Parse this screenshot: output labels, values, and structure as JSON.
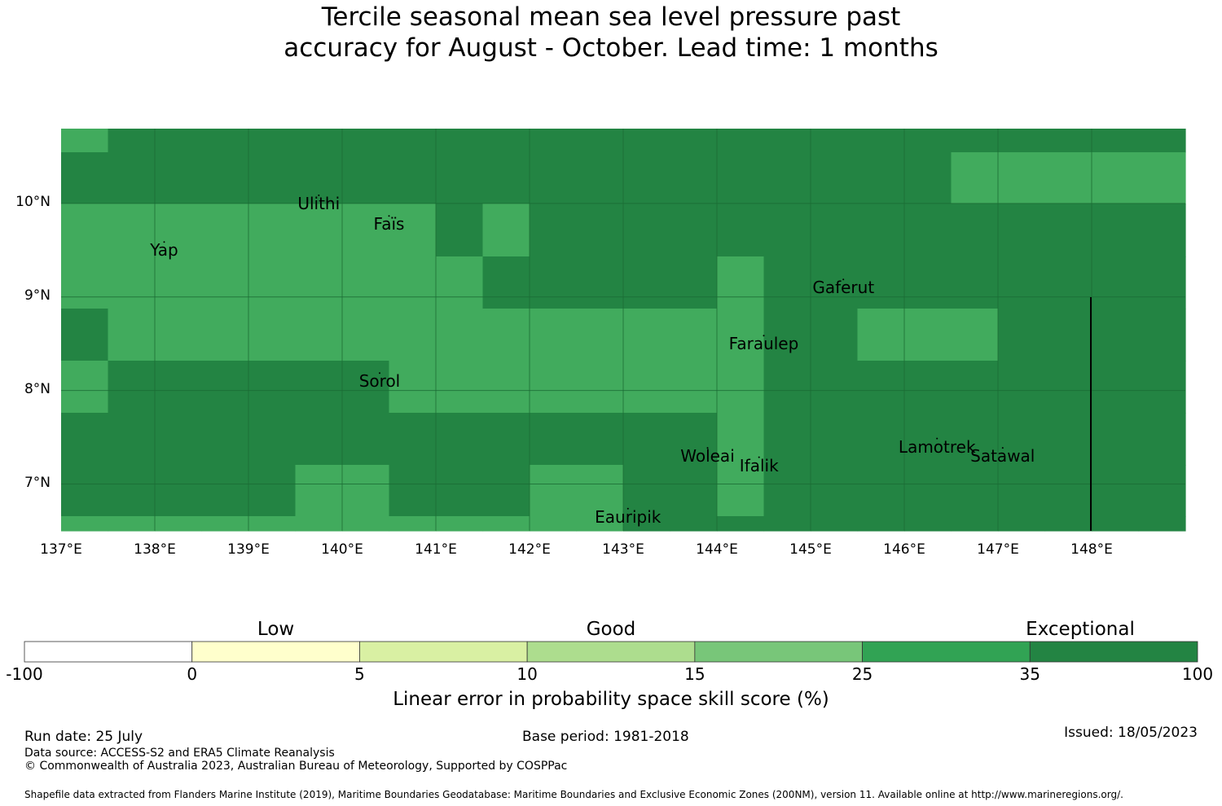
{
  "title": {
    "line1": "Tercile seasonal mean sea level pressure past",
    "line2": "accuracy for August - October. Lead time: 1 months"
  },
  "map": {
    "lon_ticks": [
      "137°E",
      "138°E",
      "139°E",
      "140°E",
      "141°E",
      "142°E",
      "143°E",
      "144°E",
      "145°E",
      "146°E",
      "147°E",
      "148°E"
    ],
    "lat_ticks": [
      "10°N",
      "9°N",
      "8°N",
      "7°N"
    ],
    "places": [
      {
        "name": "Ulithi",
        "lon": 139.75,
        "lat": 10.0
      },
      {
        "name": "Yap",
        "lon": 138.1,
        "lat": 9.5
      },
      {
        "name": "Faïs",
        "lon": 140.5,
        "lat": 9.78
      },
      {
        "name": "Gaferut",
        "lon": 145.35,
        "lat": 9.1
      },
      {
        "name": "Faraulep",
        "lon": 144.5,
        "lat": 8.5
      },
      {
        "name": "Sorol",
        "lon": 140.4,
        "lat": 8.1
      },
      {
        "name": "Woleai",
        "lon": 143.9,
        "lat": 7.3
      },
      {
        "name": "Ifalik",
        "lon": 144.45,
        "lat": 7.2
      },
      {
        "name": "Lamotrek",
        "lon": 146.35,
        "lat": 7.4
      },
      {
        "name": "Satawal",
        "lon": 147.05,
        "lat": 7.3
      },
      {
        "name": "Eauripik",
        "lon": 143.05,
        "lat": 6.65
      }
    ],
    "grid_colors": {
      "med": "#41ab5d",
      "dark": "#238443"
    },
    "grid_cells": [
      [
        "med",
        "dark",
        "dark",
        "dark",
        "dark",
        "dark",
        "dark",
        "dark",
        "dark",
        "dark",
        "dark",
        "dark",
        "dark",
        "dark",
        "dark",
        "dark",
        "dark",
        "dark",
        "dark",
        "dark",
        "dark",
        "dark",
        "dark",
        "dark"
      ],
      [
        "dark",
        "dark",
        "dark",
        "dark",
        "dark",
        "dark",
        "dark",
        "dark",
        "dark",
        "dark",
        "dark",
        "dark",
        "dark",
        "dark",
        "dark",
        "dark",
        "dark",
        "dark",
        "dark",
        "med",
        "med",
        "med",
        "med",
        "med"
      ],
      [
        "med",
        "med",
        "med",
        "med",
        "med",
        "med",
        "med",
        "med",
        "dark",
        "med",
        "dark",
        "dark",
        "dark",
        "dark",
        "dark",
        "dark",
        "dark",
        "dark",
        "dark",
        "dark",
        "dark",
        "dark",
        "dark",
        "dark"
      ],
      [
        "med",
        "med",
        "med",
        "med",
        "med",
        "med",
        "med",
        "med",
        "med",
        "dark",
        "dark",
        "dark",
        "dark",
        "dark",
        "med",
        "dark",
        "dark",
        "dark",
        "dark",
        "dark",
        "dark",
        "dark",
        "dark",
        "dark"
      ],
      [
        "dark",
        "med",
        "med",
        "med",
        "med",
        "med",
        "med",
        "med",
        "med",
        "med",
        "med",
        "med",
        "med",
        "med",
        "med",
        "dark",
        "dark",
        "med",
        "med",
        "med",
        "dark",
        "dark",
        "dark",
        "dark"
      ],
      [
        "med",
        "dark",
        "dark",
        "dark",
        "dark",
        "dark",
        "dark",
        "med",
        "med",
        "med",
        "med",
        "med",
        "med",
        "med",
        "med",
        "dark",
        "dark",
        "dark",
        "dark",
        "dark",
        "dark",
        "dark",
        "dark",
        "dark"
      ],
      [
        "dark",
        "dark",
        "dark",
        "dark",
        "dark",
        "dark",
        "dark",
        "dark",
        "dark",
        "dark",
        "dark",
        "dark",
        "dark",
        "dark",
        "med",
        "dark",
        "dark",
        "dark",
        "dark",
        "dark",
        "dark",
        "dark",
        "dark",
        "dark"
      ],
      [
        "dark",
        "dark",
        "dark",
        "dark",
        "dark",
        "med",
        "med",
        "dark",
        "dark",
        "dark",
        "med",
        "med",
        "dark",
        "dark",
        "med",
        "dark",
        "dark",
        "dark",
        "dark",
        "dark",
        "dark",
        "dark",
        "dark",
        "dark"
      ],
      [
        "med",
        "med",
        "med",
        "med",
        "med",
        "med",
        "med",
        "med",
        "med",
        "med",
        "med",
        "med",
        "dark",
        "dark",
        "dark",
        "dark",
        "dark",
        "dark",
        "dark",
        "dark",
        "dark",
        "dark",
        "dark",
        "dark"
      ]
    ]
  },
  "colorbar": {
    "categories": [
      "Low",
      "Good",
      "Exceptional"
    ],
    "ticks": [
      "-100",
      "0",
      "5",
      "10",
      "15",
      "25",
      "35",
      "100"
    ],
    "colors": [
      "#ffffff",
      "#ffffcc",
      "#d9f0a3",
      "#addd8e",
      "#78c679",
      "#31a354",
      "#238443"
    ],
    "label": "Linear error in probability space skill score (%)"
  },
  "footer": {
    "run_date": "Run date: 25 July",
    "base_period": "Base period: 1981-2018",
    "issued": "Issued: 18/05/2023",
    "data_source": "Data source: ACCESS-S2 and ERA5 Climate Reanalysis",
    "copyright": "© Commonwealth of Australia 2023, Australian Bureau of Meteorology, Supported by COSPPac",
    "shapefile": "Shapefile data extracted from Flanders Marine Institute (2019), Maritime Boundaries Geodatabase: Maritime Boundaries and Exclusive Economic Zones (200NM), version 11. Available online at http://www.marineregions.org/."
  }
}
